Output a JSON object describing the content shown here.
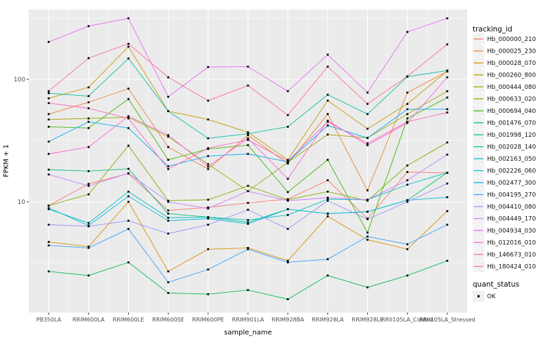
{
  "figure": {
    "y_axis": {
      "label": "FPKM + 1",
      "tick_labels": [
        "100",
        "10"
      ],
      "tick_values": [
        100,
        10
      ]
    },
    "x_axis": {
      "label": "sample_name"
    },
    "legend": {
      "tracking_title": "tracking_id",
      "quant_title": "quant_status",
      "quant_items": [
        {
          "label": "OK",
          "marker": "black-square"
        }
      ]
    },
    "colors": {
      "panel_bg": "#EBEBEB",
      "gridline": "#FFFFFF",
      "tick_label": "#4D4D4D",
      "point": "#000000",
      "legend_key_bg": "#F2F2F2"
    }
  },
  "chart_data": {
    "type": "line",
    "title": "",
    "xlabel": "sample_name",
    "ylabel": "FPKM + 1",
    "y_scale": "log10",
    "ylim": [
      1.3,
      400
    ],
    "y_major_gridlines": [
      10,
      100
    ],
    "y_minor_gridlines": [
      3.162,
      31.62,
      316.2
    ],
    "grid": "on",
    "legend_position": "right",
    "point_marker": "black-square",
    "quant_status": "OK",
    "categories": [
      "PB350LA",
      "RRIM600LA",
      "RRIM600LE",
      "RRIM600SE",
      "RRIM600PE",
      "RRIM901LA",
      "RRIM928BA",
      "RRIM928LA",
      "RRIM928LE",
      "RRII105LA_Control",
      "RRII105LA_Stressed"
    ],
    "series": [
      {
        "name": "Hb_000000_210",
        "color": "#F8766D",
        "values": [
          9.3,
          14,
          17,
          8.5,
          9,
          9.8,
          10.5,
          15,
          7.3,
          17.5,
          17.2
        ]
      },
      {
        "name": "Hb_000025_230",
        "color": "#EA8331",
        "values": [
          52,
          65,
          84,
          28,
          18.5,
          35,
          20.5,
          52,
          12.4,
          78,
          116
        ]
      },
      {
        "name": "Hb_000028_070",
        "color": "#D89000",
        "values": [
          4.7,
          4.3,
          10,
          2.7,
          4.1,
          4.2,
          3.3,
          7.6,
          4.9,
          4.1,
          8.4
        ]
      },
      {
        "name": "Hb_000260_800",
        "color": "#C09B00",
        "values": [
          70,
          86,
          185,
          55,
          47,
          37,
          22,
          67,
          39.5,
          63,
          117
        ]
      },
      {
        "name": "Hb_000444_080",
        "color": "#A3A500",
        "values": [
          47,
          48,
          49,
          34,
          20.3,
          12.2,
          21,
          35.4,
          33.2,
          52,
          80
        ]
      },
      {
        "name": "Hb_000633_020",
        "color": "#7CAE00",
        "values": [
          9.3,
          11.5,
          28.7,
          10.2,
          10.4,
          13.5,
          10.4,
          12.1,
          10.2,
          19.8,
          30.5
        ]
      },
      {
        "name": "Hb_000694_040",
        "color": "#39B600",
        "values": [
          41,
          40,
          69,
          22,
          27,
          29,
          12,
          22,
          5.6,
          48,
          71
        ]
      },
      {
        "name": "Hb_001476_070",
        "color": "#00BB4E",
        "values": [
          2.7,
          2.5,
          3.2,
          1.8,
          1.76,
          1.9,
          1.6,
          2.5,
          2,
          2.5,
          3.3
        ]
      },
      {
        "name": "Hb_001998_120",
        "color": "#00BF7D",
        "values": [
          18.3,
          17.8,
          18.6,
          8,
          7.5,
          6.8,
          8.7,
          8,
          8.3,
          10.3,
          17.3
        ]
      },
      {
        "name": "Hb_002028_140",
        "color": "#00C1A3",
        "values": [
          77,
          73,
          148,
          55,
          33,
          36,
          41,
          75,
          52,
          105,
          118
        ]
      },
      {
        "name": "Hb_002163_050",
        "color": "#00BFC4",
        "values": [
          8.7,
          6.7,
          12.1,
          7.4,
          7.5,
          7.1,
          7.8,
          10.5,
          10.4,
          13.8,
          17.3
        ]
      },
      {
        "name": "Hb_002226_060",
        "color": "#00BAE0",
        "values": [
          8.9,
          6.4,
          11.1,
          7,
          7.3,
          6.6,
          8.7,
          8,
          8.3,
          10.3,
          10.9
        ]
      },
      {
        "name": "Hb_002477_300",
        "color": "#00B0F6",
        "values": [
          31,
          45,
          40,
          19.5,
          23.6,
          24.6,
          21.2,
          42,
          33.2,
          57,
          57
        ]
      },
      {
        "name": "Hb_004195_270",
        "color": "#35A2FF",
        "values": [
          4.4,
          4.2,
          6,
          2.2,
          2.8,
          4.1,
          3.2,
          3.4,
          5.2,
          4.5,
          6.5
        ]
      },
      {
        "name": "Hb_004410_080",
        "color": "#9590FF",
        "values": [
          6.5,
          6.3,
          7,
          5.5,
          6.5,
          8.6,
          6,
          10.2,
          7.2,
          10,
          14.1
        ]
      },
      {
        "name": "Hb_004449_170",
        "color": "#C77CFF",
        "values": [
          16.7,
          13.5,
          17.1,
          10,
          8.8,
          12.2,
          10.2,
          10.8,
          10.4,
          15,
          24.3
        ]
      },
      {
        "name": "Hb_004934_030",
        "color": "#E76BF3",
        "values": [
          202,
          272,
          315,
          72,
          126,
          127,
          80,
          159,
          78,
          244,
          315
        ]
      },
      {
        "name": "Hb_012016_010",
        "color": "#FA62DB",
        "values": [
          24.6,
          28,
          50,
          35,
          19.4,
          33,
          15.4,
          46,
          29,
          44,
          104
        ]
      },
      {
        "name": "Hb_146673_010",
        "color": "#FF62BC",
        "values": [
          64,
          58,
          48,
          18.5,
          27.4,
          32,
          21.5,
          45,
          30,
          45,
          53.6
        ]
      },
      {
        "name": "Hb_180424_010",
        "color": "#FF6A98",
        "values": [
          80,
          149,
          195,
          104,
          67,
          89,
          51,
          127,
          63,
          106,
          193
        ]
      }
    ]
  }
}
